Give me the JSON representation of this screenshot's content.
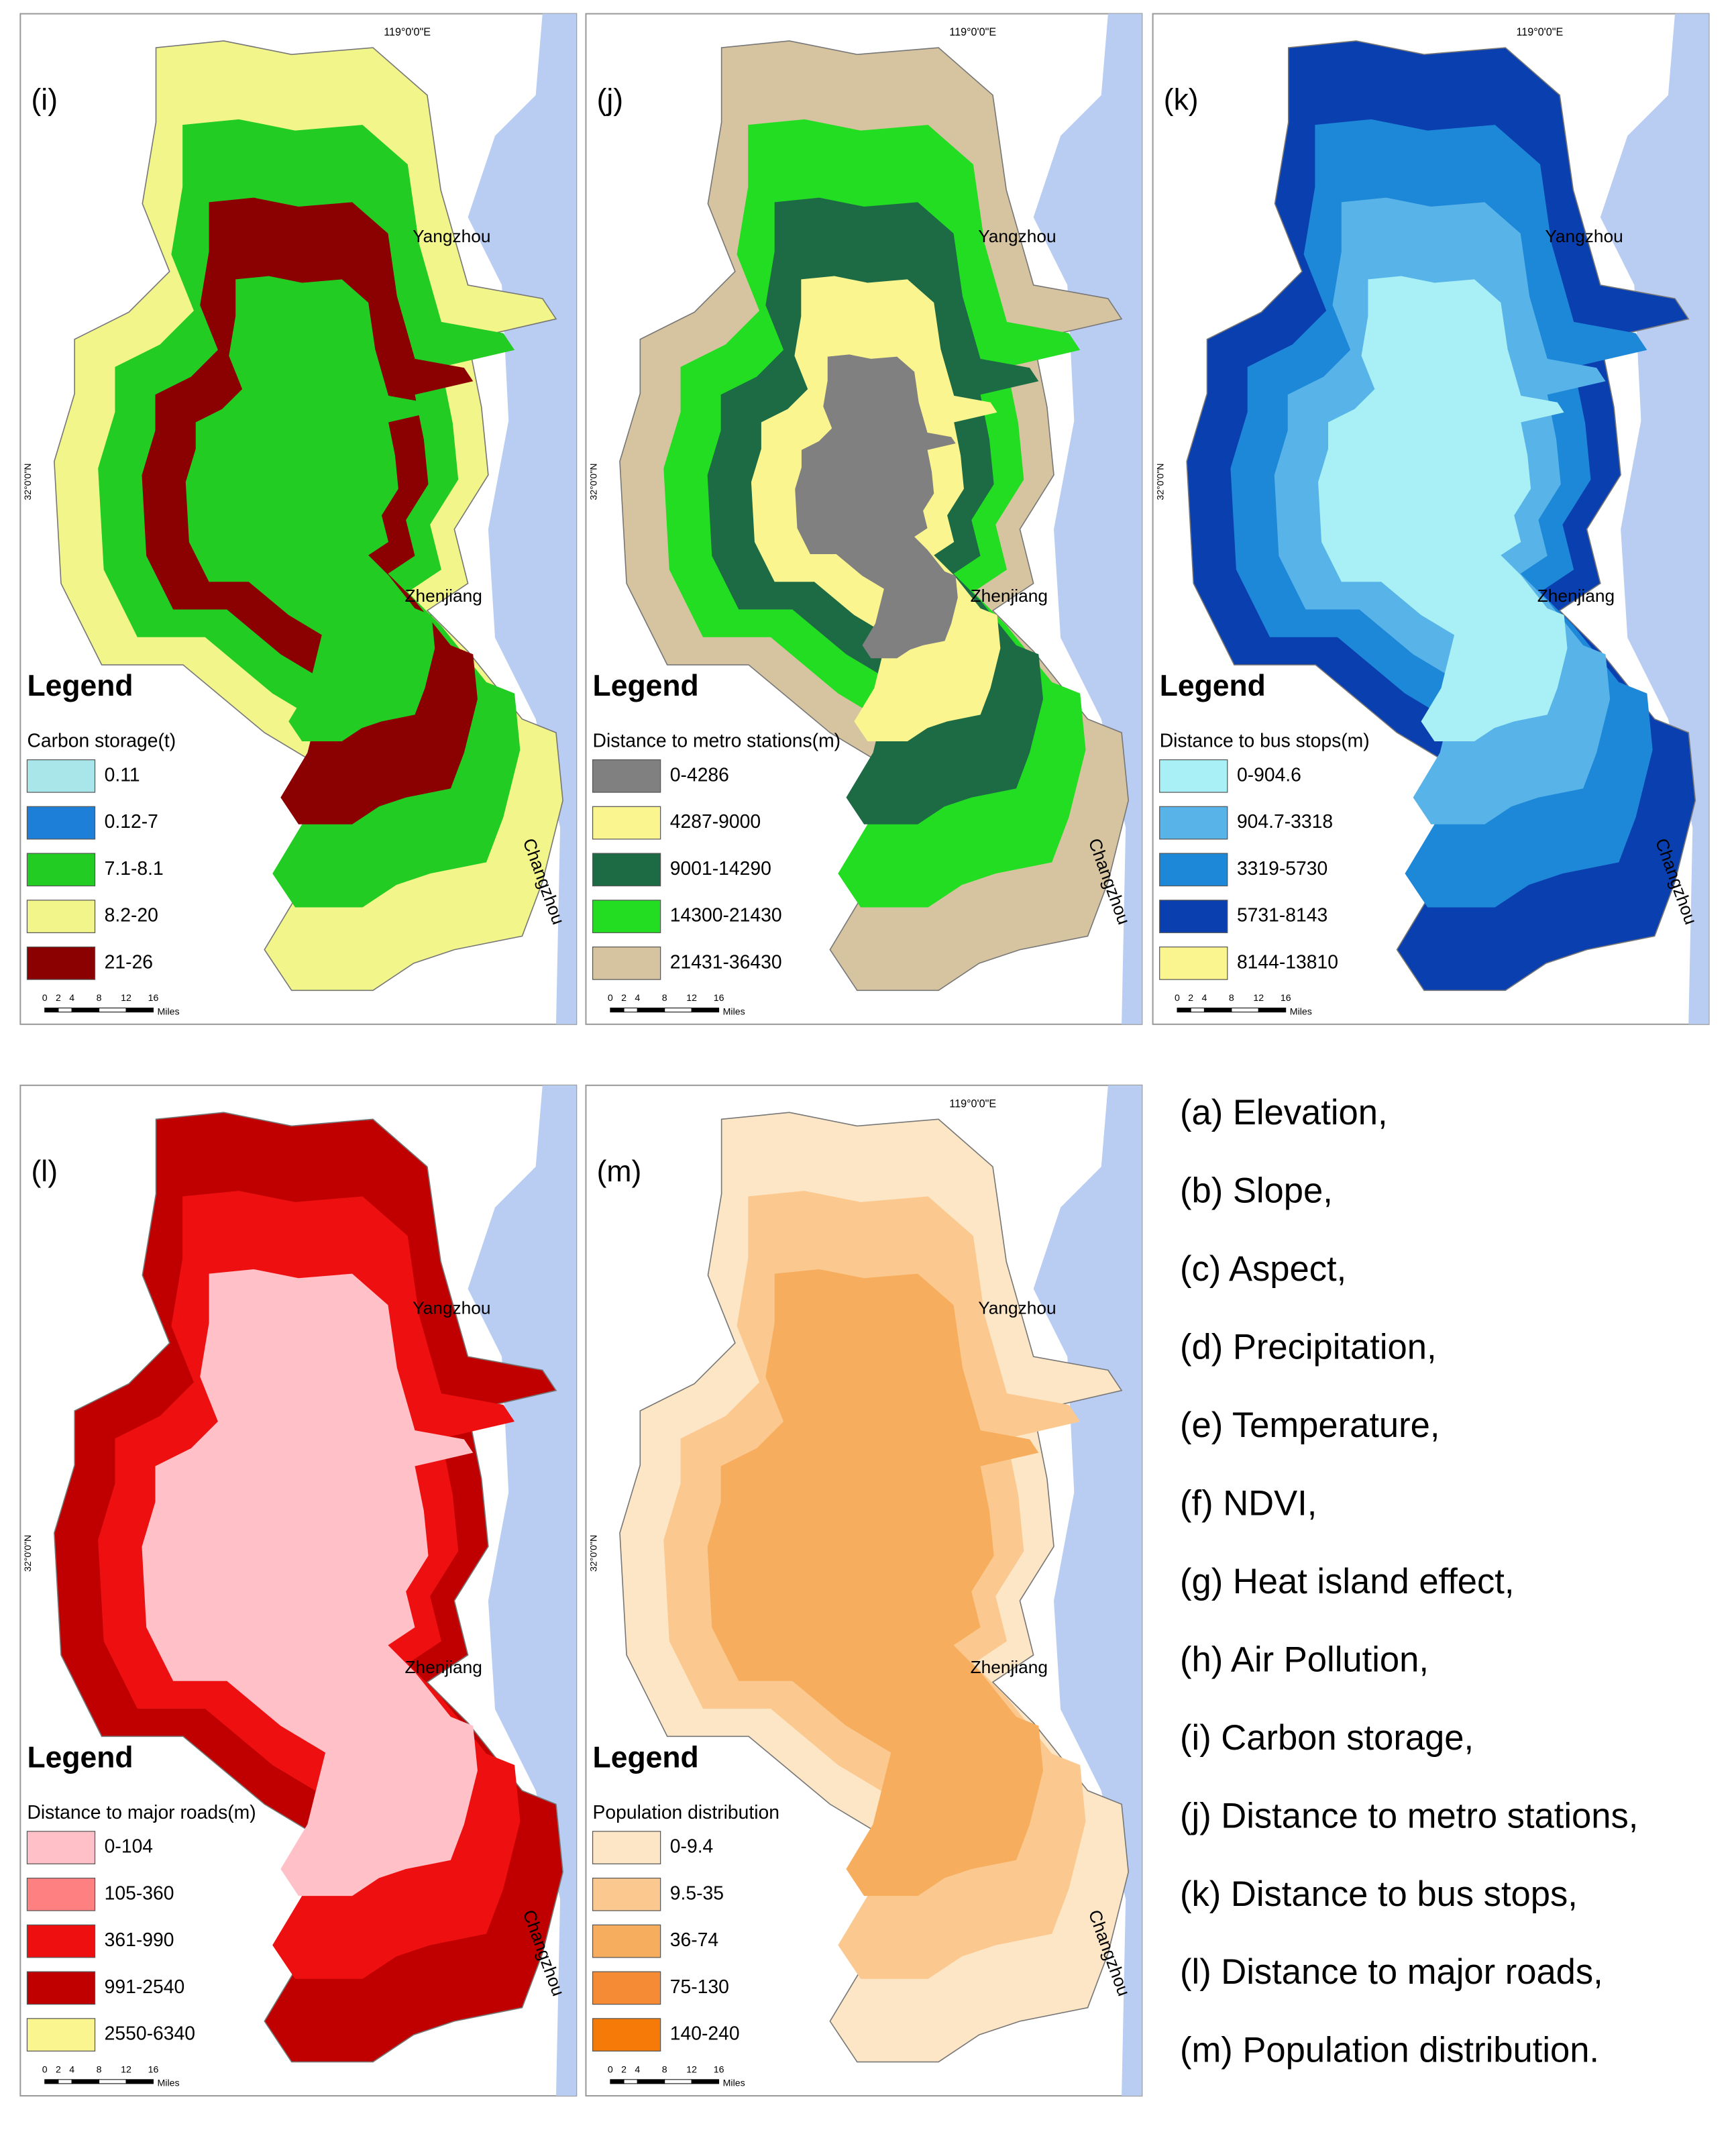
{
  "legend_heading": "Legend",
  "cities": [
    "Yangzhou",
    "Zhenjiang",
    "Changzhou"
  ],
  "scale_ticks": [
    0,
    2,
    4,
    8,
    12,
    16
  ],
  "scale_unit": "Miles",
  "panels": [
    {
      "label": "(i)",
      "lon_label": "119°0'0\"E",
      "lat_label": "32°0'0\"N",
      "legend_title": "Carbon storage(t)",
      "legend": [
        {
          "label": "0.11",
          "color": "#a8e6ea"
        },
        {
          "label": "0.12-7",
          "color": "#1e7fd8"
        },
        {
          "label": "7.1-8.1",
          "color": "#22cc22"
        },
        {
          "label": "8.2-20",
          "color": "#f2f58a"
        },
        {
          "label": "21-26",
          "color": "#8b0000"
        }
      ]
    },
    {
      "label": "(j)",
      "lon_label": "119°0'0\"E",
      "lat_label": "32°0'0\"N",
      "legend_title": "Distance to metro stations(m)",
      "legend": [
        {
          "label": "0-4286",
          "color": "#808080"
        },
        {
          "label": "4287-9000",
          "color": "#fbf58f"
        },
        {
          "label": "9001-14290",
          "color": "#1d6b45"
        },
        {
          "label": "14300-21430",
          "color": "#22dd22"
        },
        {
          "label": "21431-36430",
          "color": "#d6c4a0"
        }
      ]
    },
    {
      "label": "(k)",
      "lon_label": "119°0'0\"E",
      "lat_label": "32°0'0\"N",
      "legend_title": "Distance to bus stops(m)",
      "legend": [
        {
          "label": "0-904.6",
          "color": "#a8f0f5"
        },
        {
          "label": "904.7-3318",
          "color": "#58b4e8"
        },
        {
          "label": "3319-5730",
          "color": "#1e88d8"
        },
        {
          "label": "5731-8143",
          "color": "#0a3fb0"
        },
        {
          "label": "8144-13810",
          "color": "#fbf58f"
        }
      ]
    },
    {
      "label": "(l)",
      "lat_label": "32°0'0\"N",
      "legend_title": "Distance to major roads(m)",
      "legend": [
        {
          "label": "0-104",
          "color": "#ffc0c8"
        },
        {
          "label": "105-360",
          "color": "#ff8080"
        },
        {
          "label": "361-990",
          "color": "#ee1010"
        },
        {
          "label": "991-2540",
          "color": "#c00000"
        },
        {
          "label": "2550-6340",
          "color": "#fbf58f"
        }
      ]
    },
    {
      "label": "(m)",
      "lon_label": "119°0'0\"E",
      "lat_label": "32°0'0\"N",
      "legend_title": "Population distribution",
      "legend": [
        {
          "label": "0-9.4",
          "color": "#fde6c6"
        },
        {
          "label": "9.5-35",
          "color": "#fbc98f"
        },
        {
          "label": "36-74",
          "color": "#f6ad5e"
        },
        {
          "label": "75-130",
          "color": "#f58c35"
        },
        {
          "label": "140-240",
          "color": "#f57a08"
        }
      ]
    }
  ],
  "caption": [
    "(a) Elevation,",
    "(b) Slope,",
    "(c) Aspect,",
    "(d) Precipitation,",
    "(e) Temperature,",
    "(f) NDVI,",
    "(g) Heat island effect,",
    "(h) Air Pollution,",
    "(i) Carbon storage,",
    "(j) Distance to metro stations,",
    "(k) Distance to bus stops,",
    "(l) Distance to major roads,",
    "(m) Population distribution."
  ]
}
